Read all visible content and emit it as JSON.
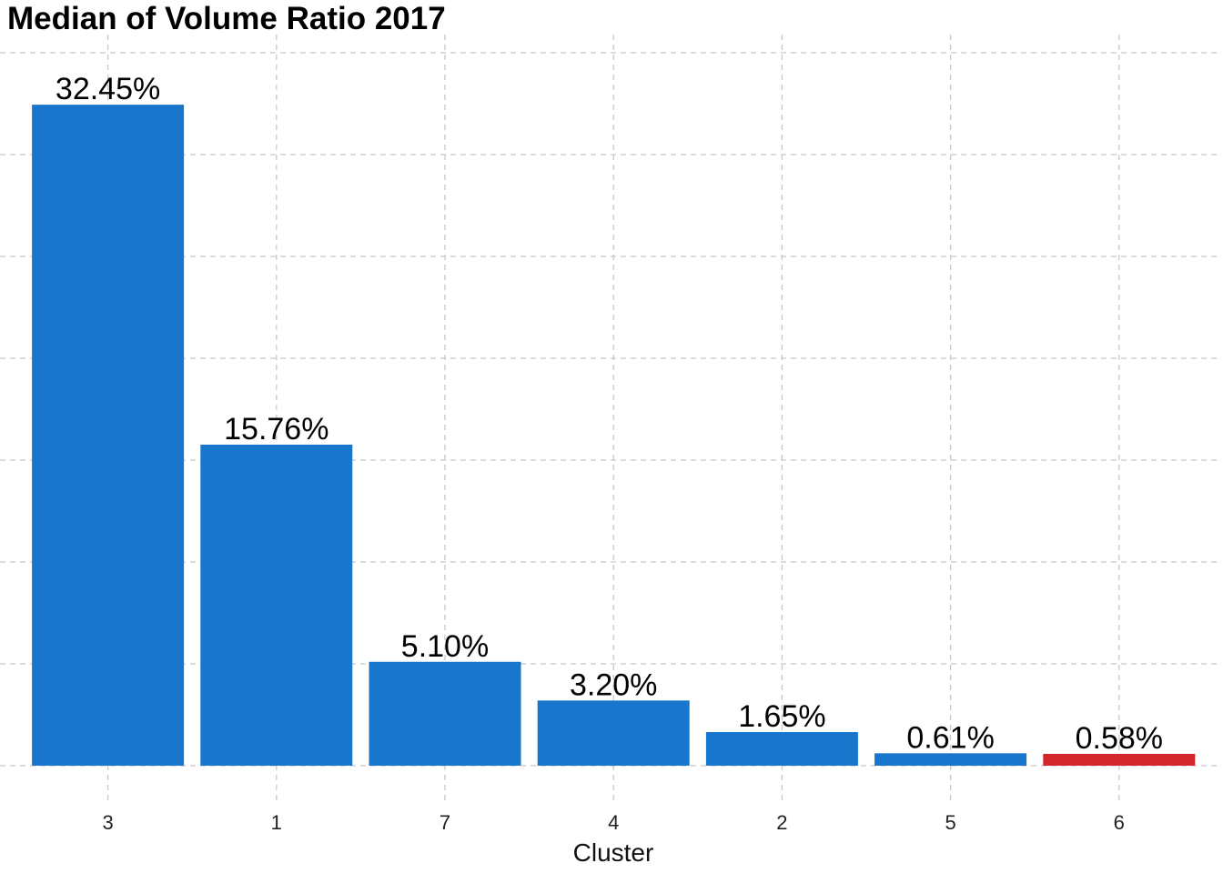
{
  "chart_data": {
    "type": "bar",
    "title": "Median of Volume Ratio 2017",
    "xlabel": "Cluster",
    "ylabel": "",
    "categories": [
      "3",
      "1",
      "7",
      "4",
      "2",
      "5",
      "6"
    ],
    "values": [
      32.45,
      15.76,
      5.1,
      3.2,
      1.65,
      0.61,
      0.58
    ],
    "data_labels": [
      "32.45%",
      "15.76%",
      "5.10%",
      "3.20%",
      "1.65%",
      "0.61%",
      "0.58%"
    ],
    "ylim": [
      0,
      35
    ],
    "y_gridlines": [
      0,
      5,
      10,
      15,
      20,
      25,
      30,
      35
    ],
    "grid": true,
    "legend": "none",
    "colors": {
      "default": "#1976CD",
      "highlight": "#D1262B",
      "highlight_category": "6"
    }
  }
}
